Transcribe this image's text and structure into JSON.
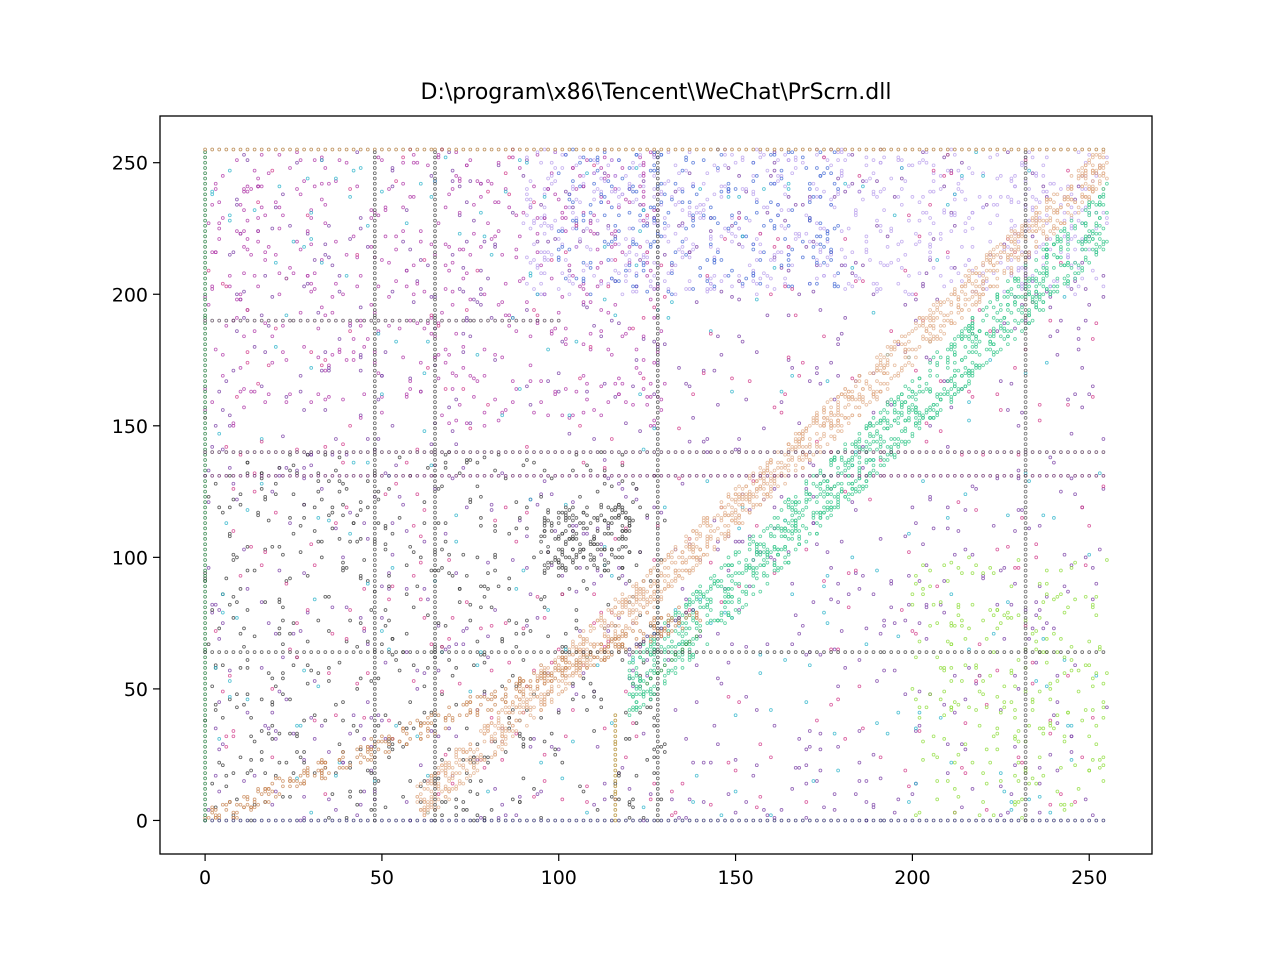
{
  "chart_data": {
    "type": "scatter",
    "title": "D:\\program\\x86\\Tencent\\WeChat\\PrScrn.dll",
    "xlabel": "",
    "ylabel": "",
    "xlim": [
      -12.75,
      267.75
    ],
    "ylim": [
      -12.75,
      267.75
    ],
    "grid": false,
    "legend": "none",
    "x_ticks": [
      {
        "value": 0,
        "label": "0"
      },
      {
        "value": 50,
        "label": "50"
      },
      {
        "value": 100,
        "label": "100"
      },
      {
        "value": 150,
        "label": "150"
      },
      {
        "value": 200,
        "label": "200"
      },
      {
        "value": 250,
        "label": "250"
      }
    ],
    "y_ticks": [
      {
        "value": 0,
        "label": "0"
      },
      {
        "value": 50,
        "label": "50"
      },
      {
        "value": 100,
        "label": "100"
      },
      {
        "value": 150,
        "label": "150"
      },
      {
        "value": 200,
        "label": "200"
      },
      {
        "value": 250,
        "label": "250"
      }
    ],
    "point_clusters": [
      {
        "x": [
          0,
          255
        ],
        "y": [
          0,
          255
        ],
        "color": "#7a3fa6",
        "count": 900
      },
      {
        "x": [
          0,
          130
        ],
        "y": [
          150,
          255
        ],
        "color": "#b03aa8",
        "count": 500
      },
      {
        "x": [
          0,
          130
        ],
        "y": [
          0,
          140
        ],
        "color": "#3a3a3a",
        "count": 600
      },
      {
        "x": [
          90,
          255
        ],
        "y": [
          200,
          255
        ],
        "color": "#b9a0ec",
        "count": 700
      },
      {
        "x": [
          100,
          180
        ],
        "y": [
          200,
          255
        ],
        "color": "#4a6fd6",
        "count": 250
      },
      {
        "x": [
          0,
          255
        ],
        "y": [
          0,
          255
        ],
        "color": "#2bb3c9",
        "count": 250
      },
      {
        "x": [
          0,
          255
        ],
        "y": [
          0,
          255
        ],
        "color": "#d23b8a",
        "count": 350
      },
      {
        "x": [
          200,
          255
        ],
        "y": [
          0,
          100
        ],
        "color": "#8fdc3c",
        "count": 250
      },
      {
        "x": [
          95,
          120
        ],
        "y": [
          95,
          120
        ],
        "color": "#444444",
        "count": 160
      }
    ],
    "diagonal_bands": [
      {
        "x0": 60,
        "y0": 5,
        "x1": 255,
        "y1": 250,
        "spread": 8,
        "color": "#e2b08e",
        "count": 1400
      },
      {
        "x0": 120,
        "y0": 50,
        "x1": 255,
        "y1": 230,
        "spread": 12,
        "color": "#3cc88f",
        "count": 1100
      },
      {
        "x0": 0,
        "y0": 0,
        "x1": 140,
        "y1": 80,
        "spread": 4,
        "color": "#c9895a",
        "count": 350
      }
    ],
    "lines": [
      {
        "x0": 0,
        "y0": 0,
        "x1": 255,
        "y1": 0,
        "color": "#2b2b6b"
      },
      {
        "x0": 0,
        "y0": 0,
        "x1": 0,
        "y1": 255,
        "color": "#1f7a3a"
      },
      {
        "x0": 0,
        "y0": 140,
        "x1": 255,
        "y1": 140,
        "color": "#5a3a5a"
      },
      {
        "x0": 0,
        "y0": 131,
        "x1": 255,
        "y1": 131,
        "color": "#6a2a6a"
      },
      {
        "x0": 0,
        "y0": 64,
        "x1": 255,
        "y1": 64,
        "color": "#444444"
      },
      {
        "x0": 0,
        "y0": 255,
        "x1": 255,
        "y1": 255,
        "color": "#b07a3a"
      },
      {
        "x0": 48,
        "y0": 0,
        "x1": 48,
        "y1": 255,
        "color": "#444444"
      },
      {
        "x0": 65,
        "y0": 0,
        "x1": 65,
        "y1": 255,
        "color": "#444444"
      },
      {
        "x0": 128,
        "y0": 0,
        "x1": 128,
        "y1": 255,
        "color": "#444444"
      },
      {
        "x0": 232,
        "y0": 0,
        "x1": 232,
        "y1": 255,
        "color": "#555555"
      },
      {
        "x0": 0,
        "y0": 190,
        "x1": 100,
        "y1": 190,
        "color": "#5a4a5a"
      },
      {
        "x0": 116,
        "y0": 0,
        "x1": 116,
        "y1": 40,
        "color": "#b08a2a"
      },
      {
        "x0": 125,
        "y0": 52,
        "x1": 140,
        "y1": 72,
        "color": "#1e8a3a"
      },
      {
        "x0": 120,
        "y0": 65,
        "x1": 138,
        "y1": 80,
        "color": "#4a3a8a"
      }
    ]
  }
}
